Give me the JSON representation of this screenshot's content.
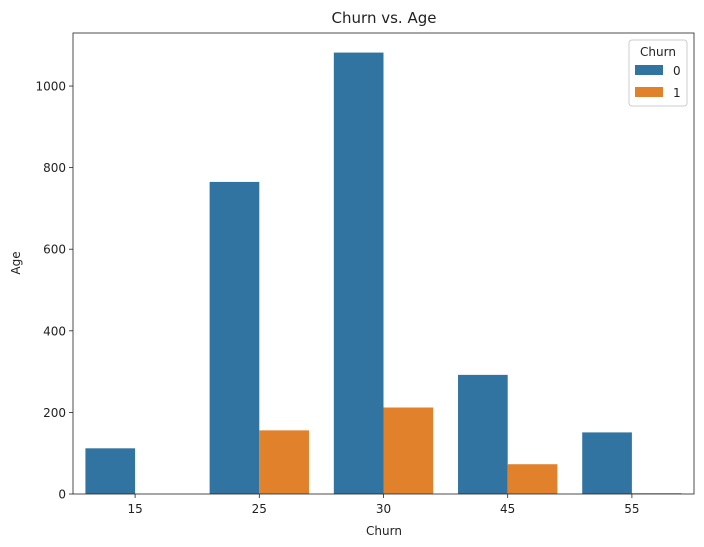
{
  "chart_data": {
    "type": "bar",
    "title": "Churn vs. Age",
    "xlabel": "Churn",
    "ylabel": "Age",
    "categories": [
      "15",
      "25",
      "30",
      "45",
      "55"
    ],
    "series": [
      {
        "name": "0",
        "values": [
          112,
          765,
          1082,
          292,
          151
        ],
        "color": "#3274a1"
      },
      {
        "name": "1",
        "values": [
          0,
          156,
          212,
          73,
          2
        ],
        "color": "#e1812c"
      }
    ],
    "ylim": [
      0,
      1130
    ],
    "yticks": [
      0,
      200,
      400,
      600,
      800,
      1000
    ],
    "grid": false,
    "legend": {
      "title": "Churn",
      "placement": "top-right"
    }
  }
}
